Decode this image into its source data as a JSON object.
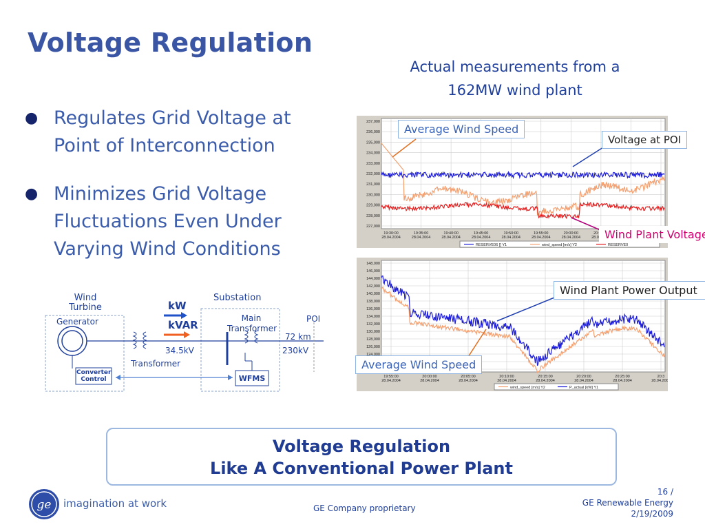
{
  "title": "Voltage Regulation",
  "subtitle_line1": "Actual measurements from a",
  "subtitle_line2": "162MW wind plant",
  "bullets": [
    "Regulates Grid Voltage at Point of Interconnection",
    "Minimizes Grid Voltage Fluctuations Even Under Varying Wind Conditions"
  ],
  "diagram": {
    "wind_turbine": "Wind Turbine",
    "generator": "Generator",
    "converter_control": "Converter Control",
    "kw": "kW",
    "kvar": "kVAR",
    "substation": "Substation",
    "main_transformer": "Main Transformer",
    "poi": "POI",
    "km": "72 km",
    "v34": "34.5kV",
    "v230": "230kV",
    "transformer": "Transformer",
    "wfms": "WFMS"
  },
  "callouts": {
    "avg_wind_top": "Average Wind Speed",
    "voltage_poi": "Voltage at POI",
    "wind_plant_voltage": "Wind Plant Voltage",
    "wind_plant_power": "Wind Plant Power Output",
    "avg_wind_bottom": "Average Wind Speed"
  },
  "chart_data": [
    {
      "type": "line",
      "y_ticks": [
        "237,000",
        "236,000",
        "235,000",
        "234,000",
        "233,000",
        "232,000",
        "231,000",
        "230,000",
        "229,000",
        "228,000",
        "227,000"
      ],
      "x_ticks": [
        "19:30:00",
        "19:35:00",
        "19:40:00",
        "19:45:00",
        "19:50:00",
        "19:55:00",
        "20:00:00",
        "20:05:00",
        "20:10:00",
        "20:1"
      ],
      "x_dates": "28.04.2004",
      "legend": [
        "RESERVE06 [] Y1",
        "wind_speed [m/s] Y2",
        "RESERVE0"
      ],
      "series": [
        {
          "name": "RESERVE06 [] Y1",
          "color": "#1E1ED8"
        },
        {
          "name": "wind_speed [m/s] Y2",
          "color": "#F4A070"
        },
        {
          "name": "RESERVE0",
          "color": "#E42020"
        }
      ]
    },
    {
      "type": "line",
      "y_ticks": [
        "148,000",
        "146,000",
        "144,000",
        "142,000",
        "140,000",
        "138,000",
        "136,000",
        "134,000",
        "132,000",
        "130,000",
        "128,000",
        "126,000",
        "124,000",
        "122,000",
        "120,000"
      ],
      "x_ticks": [
        "19:55:00",
        "20:00:00",
        "20:05:00",
        "20:10:00",
        "20:15:00",
        "20:20:00",
        "20:25:00",
        "20:3"
      ],
      "x_dates": "28.04.2004",
      "legend": [
        "wind_speed [m/s] Y2",
        "P_actual [kW] Y1"
      ],
      "series": [
        {
          "name": "wind_speed [m/s] Y2",
          "color": "#F4A070"
        },
        {
          "name": "P_actual [kW] Y1",
          "color": "#1E1ED8"
        }
      ]
    }
  ],
  "banner_line1": "Voltage Regulation",
  "banner_line2": "Like A Conventional Power Plant",
  "logo_tagline": "imagination at work",
  "footer_center": "GE Company proprietary",
  "footer_page": "16 /",
  "footer_org": "GE Renewable Energy",
  "footer_date": "2/19/2009",
  "colors": {
    "title": "#3A55A4",
    "body": "#3B5CAA",
    "blue": "#1E1ED8",
    "orange": "#F4A070",
    "red": "#E42020",
    "magenta": "#D0006F"
  }
}
